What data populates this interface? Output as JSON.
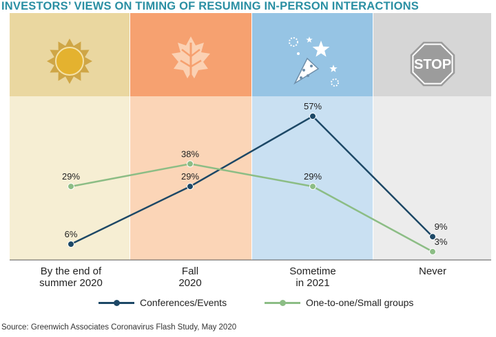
{
  "chart_data": {
    "type": "line",
    "title": "INVESTORS’ VIEWS ON TIMING OF RESUMING IN-PERSON INTERACTIONS",
    "categories": [
      "By the end of\nsummer 2020",
      "Fall\n2020",
      "Sometime\nin 2021",
      "Never"
    ],
    "series": [
      {
        "name": "Conferences/Events",
        "values": [
          6,
          29,
          57,
          9
        ],
        "labels": [
          "6%",
          "29%",
          "57%",
          "9%"
        ],
        "color": "#1d4866"
      },
      {
        "name": "One-to-one/Small groups",
        "values": [
          29,
          38,
          29,
          3
        ],
        "labels": [
          "29%",
          "38%",
          "29%",
          "3%"
        ],
        "color": "#8cbd85"
      }
    ],
    "ylim": [
      0,
      65
    ],
    "grid": false,
    "legend": "bottom-center",
    "xlabel": "",
    "ylabel": "",
    "panel_colors": {
      "header": [
        "#ead7a0",
        "#f6a170",
        "#96c4e4",
        "#d6d6d6"
      ],
      "body": [
        "#f6eed3",
        "#fbd5b7",
        "#c9e0f2",
        "#ececec"
      ]
    },
    "panel_icons": [
      "sun-icon",
      "leaf-icon",
      "party-popper-icon",
      "stop-sign-icon"
    ],
    "stop_sign_text": "STOP"
  },
  "source": "Source: Greenwich Associates Coronavirus Flash Study, May 2020"
}
